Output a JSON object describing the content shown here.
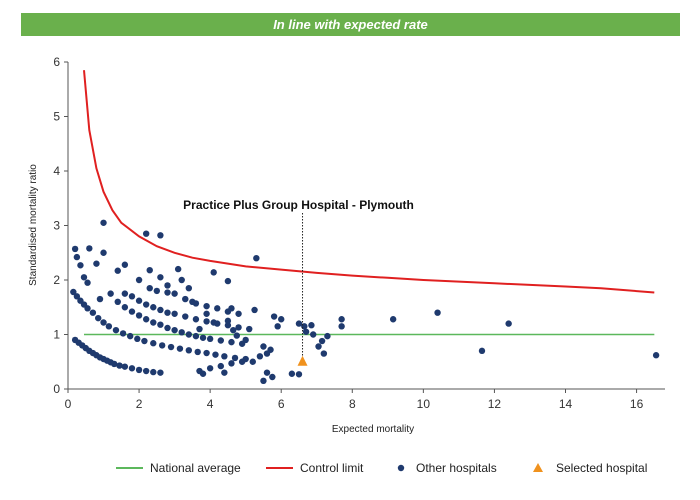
{
  "banner": {
    "text": "In line with expected rate",
    "color": "#6ab04c"
  },
  "chart_data": {
    "type": "scatter",
    "xlabel": "Expected mortality",
    "ylabel": "Standardised mortality ratio",
    "xlim": [
      0,
      16.8
    ],
    "ylim": [
      0,
      6
    ],
    "xticks": [
      "0",
      "2",
      "4",
      "6",
      "8",
      "10",
      "12",
      "14",
      "16"
    ],
    "yticks": [
      "0",
      "1",
      "2",
      "3",
      "4",
      "5",
      "6"
    ],
    "grid": false,
    "annotation": {
      "text": "Practice Plus Group Hospital - Plymouth",
      "x": 6.6
    },
    "colors": {
      "national": "#5cb85c",
      "control": "#e02020",
      "hospitals": "#1f3a6e",
      "selected": "#f0921e"
    },
    "national_average": {
      "name": "National average",
      "y": 1
    },
    "control_limit": {
      "name": "Control limit",
      "x": [
        0.45,
        0.6,
        0.8,
        1,
        1.25,
        1.5,
        2,
        2.5,
        3,
        3.5,
        4,
        5,
        6,
        7,
        8,
        9,
        10,
        11,
        12,
        13,
        14,
        15,
        16.5
      ],
      "y": [
        5.85,
        4.75,
        4.05,
        3.62,
        3.28,
        3.05,
        2.8,
        2.62,
        2.5,
        2.41,
        2.35,
        2.25,
        2.19,
        2.13,
        2.08,
        2.04,
        2.0,
        1.97,
        1.94,
        1.91,
        1.88,
        1.85,
        1.77
      ]
    },
    "selected_hospital": {
      "name": "Selected hospital",
      "x": 6.6,
      "y": 0.5
    },
    "other_hospitals": {
      "name": "Other hospitals",
      "points": [
        [
          1.0,
          3.05
        ],
        [
          2.2,
          2.85
        ],
        [
          2.6,
          2.82
        ],
        [
          5.3,
          2.4
        ],
        [
          0.2,
          2.57
        ],
        [
          0.6,
          2.58
        ],
        [
          0.25,
          2.42
        ],
        [
          0.35,
          2.27
        ],
        [
          0.45,
          2.05
        ],
        [
          0.55,
          1.95
        ],
        [
          0.8,
          2.3
        ],
        [
          1.0,
          2.5
        ],
        [
          1.4,
          2.17
        ],
        [
          1.6,
          2.28
        ],
        [
          2.0,
          2.0
        ],
        [
          2.3,
          2.18
        ],
        [
          2.6,
          2.05
        ],
        [
          2.8,
          1.9
        ],
        [
          3.1,
          2.2
        ],
        [
          3.2,
          2.0
        ],
        [
          3.4,
          1.85
        ],
        [
          4.1,
          2.14
        ],
        [
          4.5,
          1.98
        ],
        [
          0.15,
          1.78
        ],
        [
          0.25,
          1.7
        ],
        [
          0.35,
          1.62
        ],
        [
          0.45,
          1.55
        ],
        [
          0.55,
          1.48
        ],
        [
          0.7,
          1.4
        ],
        [
          0.85,
          1.3
        ],
        [
          1.0,
          1.22
        ],
        [
          1.15,
          1.15
        ],
        [
          1.35,
          1.08
        ],
        [
          1.55,
          1.02
        ],
        [
          1.75,
          0.97
        ],
        [
          1.95,
          0.92
        ],
        [
          2.15,
          0.88
        ],
        [
          2.4,
          0.84
        ],
        [
          2.65,
          0.8
        ],
        [
          2.9,
          0.77
        ],
        [
          3.15,
          0.74
        ],
        [
          3.4,
          0.71
        ],
        [
          3.65,
          0.68
        ],
        [
          3.9,
          0.66
        ],
        [
          4.15,
          0.63
        ],
        [
          4.4,
          0.6
        ],
        [
          4.7,
          0.57
        ],
        [
          0.9,
          1.65
        ],
        [
          1.2,
          1.75
        ],
        [
          1.4,
          1.6
        ],
        [
          1.6,
          1.5
        ],
        [
          1.8,
          1.42
        ],
        [
          2.0,
          1.35
        ],
        [
          2.2,
          1.28
        ],
        [
          2.4,
          1.22
        ],
        [
          2.6,
          1.18
        ],
        [
          2.8,
          1.12
        ],
        [
          3.0,
          1.08
        ],
        [
          3.2,
          1.04
        ],
        [
          3.4,
          1.0
        ],
        [
          3.6,
          0.97
        ],
        [
          3.8,
          0.94
        ],
        [
          4.0,
          0.92
        ],
        [
          4.3,
          0.89
        ],
        [
          4.6,
          0.86
        ],
        [
          4.9,
          0.83
        ],
        [
          1.6,
          1.75
        ],
        [
          1.8,
          1.7
        ],
        [
          2.0,
          1.62
        ],
        [
          2.2,
          1.55
        ],
        [
          2.4,
          1.5
        ],
        [
          2.6,
          1.45
        ],
        [
          2.8,
          1.4
        ],
        [
          3.0,
          1.38
        ],
        [
          3.3,
          1.33
        ],
        [
          3.6,
          1.28
        ],
        [
          3.9,
          1.24
        ],
        [
          4.2,
          1.2
        ],
        [
          4.5,
          1.17
        ],
        [
          4.8,
          1.13
        ],
        [
          5.1,
          1.1
        ],
        [
          2.3,
          1.85
        ],
        [
          2.5,
          1.8
        ],
        [
          2.8,
          1.77
        ],
        [
          3.0,
          1.75
        ],
        [
          3.3,
          1.65
        ],
        [
          3.6,
          1.57
        ],
        [
          3.9,
          1.52
        ],
        [
          4.2,
          1.48
        ],
        [
          4.5,
          1.42
        ],
        [
          4.8,
          1.38
        ],
        [
          0.2,
          0.9
        ],
        [
          0.3,
          0.85
        ],
        [
          0.4,
          0.8
        ],
        [
          0.5,
          0.75
        ],
        [
          0.6,
          0.7
        ],
        [
          0.7,
          0.66
        ],
        [
          0.8,
          0.62
        ],
        [
          0.9,
          0.58
        ],
        [
          1.0,
          0.55
        ],
        [
          1.1,
          0.52
        ],
        [
          1.2,
          0.49
        ],
        [
          1.3,
          0.46
        ],
        [
          1.45,
          0.43
        ],
        [
          1.6,
          0.41
        ],
        [
          1.8,
          0.38
        ],
        [
          2.0,
          0.35
        ],
        [
          2.2,
          0.33
        ],
        [
          2.4,
          0.31
        ],
        [
          2.6,
          0.3
        ],
        [
          5.5,
          0.78
        ],
        [
          5.7,
          0.72
        ],
        [
          5.9,
          1.15
        ],
        [
          6.0,
          1.28
        ],
        [
          5.8,
          1.33
        ],
        [
          5.6,
          0.65
        ],
        [
          5.4,
          0.6
        ],
        [
          5.0,
          0.55
        ],
        [
          5.2,
          0.5
        ],
        [
          4.9,
          0.5
        ],
        [
          4.6,
          0.47
        ],
        [
          4.3,
          0.42
        ],
        [
          4.0,
          0.38
        ],
        [
          3.7,
          0.33
        ],
        [
          4.4,
          0.3
        ],
        [
          3.8,
          0.28
        ],
        [
          5.6,
          0.3
        ],
        [
          5.75,
          0.22
        ],
        [
          5.5,
          0.15
        ],
        [
          6.3,
          0.28
        ],
        [
          6.5,
          0.27
        ],
        [
          6.5,
          1.2
        ],
        [
          6.65,
          1.15
        ],
        [
          6.85,
          1.17
        ],
        [
          6.7,
          1.05
        ],
        [
          6.9,
          1.0
        ],
        [
          7.05,
          0.78
        ],
        [
          7.15,
          0.88
        ],
        [
          7.2,
          0.65
        ],
        [
          7.3,
          0.97
        ],
        [
          7.7,
          1.28
        ],
        [
          7.7,
          1.15
        ],
        [
          9.15,
          1.28
        ],
        [
          10.4,
          1.4
        ],
        [
          11.65,
          0.7
        ],
        [
          12.4,
          1.2
        ],
        [
          16.55,
          0.62
        ],
        [
          4.6,
          1.48
        ],
        [
          4.5,
          1.25
        ],
        [
          4.65,
          1.08
        ],
        [
          4.75,
          0.98
        ],
        [
          5.0,
          0.9
        ],
        [
          5.25,
          1.45
        ],
        [
          4.1,
          1.22
        ],
        [
          3.9,
          1.38
        ],
        [
          3.7,
          1.1
        ],
        [
          3.5,
          1.6
        ]
      ]
    }
  }
}
